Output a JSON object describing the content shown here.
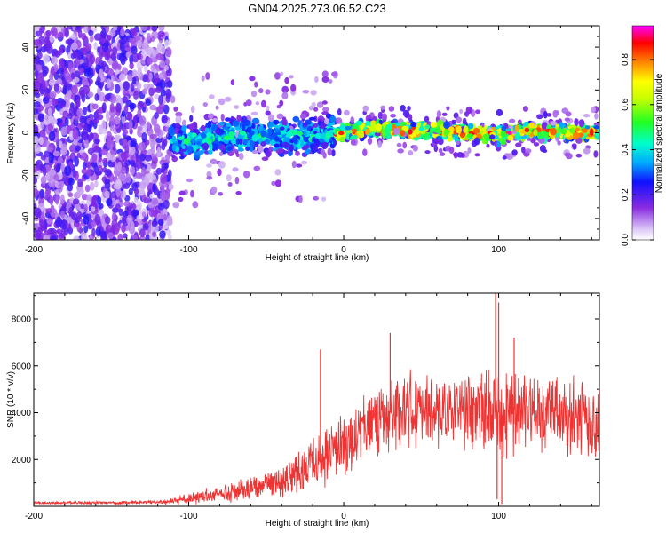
{
  "figure": {
    "title": "GN04.2025.273.06.52.C23"
  },
  "chart_data": [
    {
      "type": "heatmap",
      "title": "GN04.2025.273.06.52.C23",
      "xlabel": "Height of straight line (km)",
      "ylabel": "Frequency (Hz)",
      "xlim": [
        -200,
        165
      ],
      "ylim": [
        -50,
        50
      ],
      "x_ticks": [
        -200,
        -100,
        0,
        100
      ],
      "y_ticks": [
        -40,
        -20,
        0,
        20,
        40
      ],
      "colorbar": {
        "label": "Normalized spectral amplitude",
        "range": [
          0,
          0.95
        ],
        "ticks": [
          0.0,
          0.2,
          0.4,
          0.6,
          0.8
        ]
      },
      "regions": [
        {
          "name": "diffuse noise",
          "x_range": [
            -200,
            -112
          ],
          "freq_range": [
            -50,
            50
          ],
          "amplitude": 0.15
        },
        {
          "name": "broad band",
          "x_range": [
            -112,
            -5
          ],
          "freq_range": [
            -10,
            10
          ],
          "amplitude": 0.35
        },
        {
          "name": "narrow band",
          "x_range": [
            -5,
            165
          ],
          "freq_range": [
            -4,
            4
          ],
          "amplitude": 0.75
        }
      ],
      "band_center_hz": [
        {
          "x": -100,
          "f": -4
        },
        {
          "x": -60,
          "f": -1
        },
        {
          "x": -20,
          "f": -2
        },
        {
          "x": 0,
          "f": 0
        },
        {
          "x": 20,
          "f": 2
        },
        {
          "x": 40,
          "f": 1
        },
        {
          "x": 60,
          "f": 1
        },
        {
          "x": 80,
          "f": 0
        },
        {
          "x": 100,
          "f": -1
        },
        {
          "x": 120,
          "f": 1
        },
        {
          "x": 140,
          "f": 0
        },
        {
          "x": 165,
          "f": 0
        }
      ]
    },
    {
      "type": "line",
      "xlabel": "Height of straight line (km)",
      "ylabel": "SNR (10 * v/v)",
      "xlim": [
        -200,
        165
      ],
      "ylim": [
        0,
        9100
      ],
      "x_ticks": [
        -200,
        -100,
        0,
        100
      ],
      "y_ticks": [
        2000,
        4000,
        6000,
        8000
      ],
      "color": "#ee3333",
      "envelope": [
        {
          "x": -200,
          "mean": 150,
          "spread": 100
        },
        {
          "x": -150,
          "mean": 150,
          "spread": 100
        },
        {
          "x": -115,
          "mean": 180,
          "spread": 150
        },
        {
          "x": -100,
          "mean": 350,
          "spread": 400
        },
        {
          "x": -80,
          "mean": 500,
          "spread": 600
        },
        {
          "x": -60,
          "mean": 800,
          "spread": 900
        },
        {
          "x": -40,
          "mean": 1000,
          "spread": 1100
        },
        {
          "x": -20,
          "mean": 1800,
          "spread": 1800
        },
        {
          "x": 0,
          "mean": 2700,
          "spread": 2400
        },
        {
          "x": 20,
          "mean": 3700,
          "spread": 2400
        },
        {
          "x": 40,
          "mean": 4300,
          "spread": 2800
        },
        {
          "x": 60,
          "mean": 3900,
          "spread": 2400
        },
        {
          "x": 80,
          "mean": 4000,
          "spread": 2600
        },
        {
          "x": 100,
          "mean": 4000,
          "spread": 3400
        },
        {
          "x": 120,
          "mean": 4100,
          "spread": 2600
        },
        {
          "x": 140,
          "mean": 3900,
          "spread": 2800
        },
        {
          "x": 165,
          "mean": 3600,
          "spread": 2600
        }
      ],
      "peaks": [
        {
          "x": -15,
          "y": 6700
        },
        {
          "x": 30,
          "y": 7400
        },
        {
          "x": 98,
          "y": 9100
        },
        {
          "x": 100,
          "y": 8700
        },
        {
          "x": 110,
          "y": 7200
        }
      ],
      "dips": [
        {
          "x": 102,
          "y": 100
        },
        {
          "x": 99,
          "y": 300
        }
      ]
    }
  ]
}
